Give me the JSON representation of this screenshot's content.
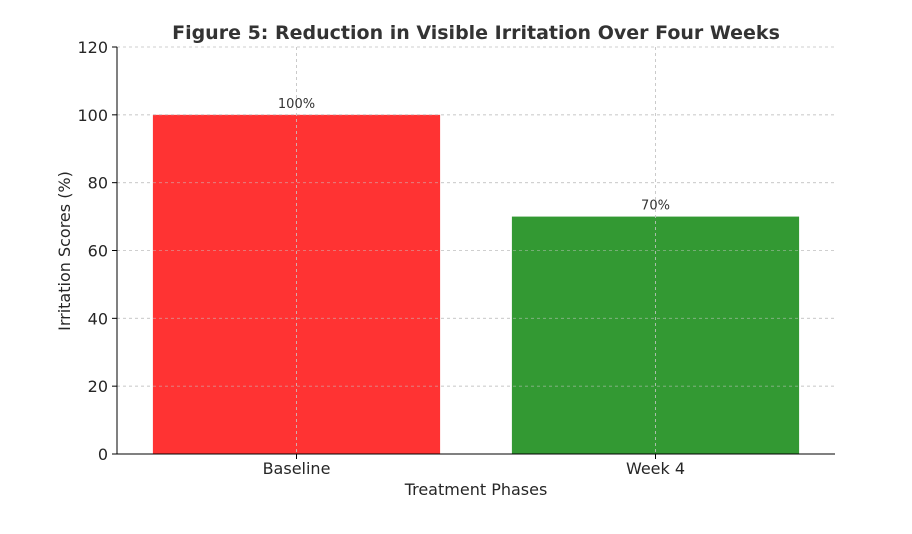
{
  "chart_data": {
    "type": "bar",
    "title": "Figure 5: Reduction in Visible Irritation Over Four Weeks",
    "xlabel": "Treatment Phases",
    "ylabel": "Irritation Scores (%)",
    "categories": [
      "Baseline",
      "Week 4"
    ],
    "values": [
      100,
      70
    ],
    "data_labels": [
      "100%",
      "70%"
    ],
    "colors": [
      "#ff3333",
      "#339933"
    ],
    "ylim": [
      0,
      120
    ],
    "yticks": [
      0,
      20,
      40,
      60,
      80,
      100,
      120
    ],
    "ytick_labels": [
      "0",
      "20",
      "40",
      "60",
      "80",
      "100",
      "120"
    ],
    "grid": true,
    "legend": "none"
  }
}
